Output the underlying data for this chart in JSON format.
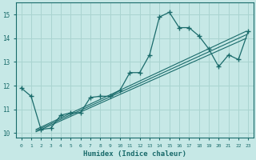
{
  "xlabel": "Humidex (Indice chaleur)",
  "ylabel": "",
  "bg_color": "#c6e8e6",
  "line_color": "#1a6b6b",
  "grid_color": "#aad4d0",
  "xlim": [
    -0.5,
    23.5
  ],
  "ylim": [
    9.8,
    15.5
  ],
  "xticks": [
    0,
    1,
    2,
    3,
    4,
    5,
    6,
    7,
    8,
    9,
    10,
    11,
    12,
    13,
    14,
    15,
    16,
    17,
    18,
    19,
    20,
    21,
    22,
    23
  ],
  "yticks": [
    10,
    11,
    12,
    13,
    14,
    15
  ],
  "main_x": [
    0,
    1,
    2,
    3,
    4,
    5,
    6,
    7,
    8,
    9,
    10,
    11,
    12,
    13,
    14,
    15,
    16,
    17,
    18,
    19,
    20,
    21,
    22,
    23
  ],
  "main_y": [
    11.9,
    11.55,
    10.15,
    10.2,
    10.75,
    10.85,
    10.85,
    11.5,
    11.55,
    11.55,
    11.8,
    12.55,
    12.55,
    13.3,
    14.9,
    15.1,
    14.45,
    14.45,
    14.1,
    13.55,
    12.8,
    13.3,
    13.1,
    14.3
  ],
  "trend1_x": [
    1.5,
    22.8
  ],
  "trend1_y": [
    10.15,
    14.3
  ],
  "trend2_x": [
    1.5,
    22.8
  ],
  "trend2_y": [
    10.1,
    14.15
  ],
  "trend3_x": [
    1.5,
    22.8
  ],
  "trend3_y": [
    10.05,
    14.0
  ],
  "marker": "+"
}
